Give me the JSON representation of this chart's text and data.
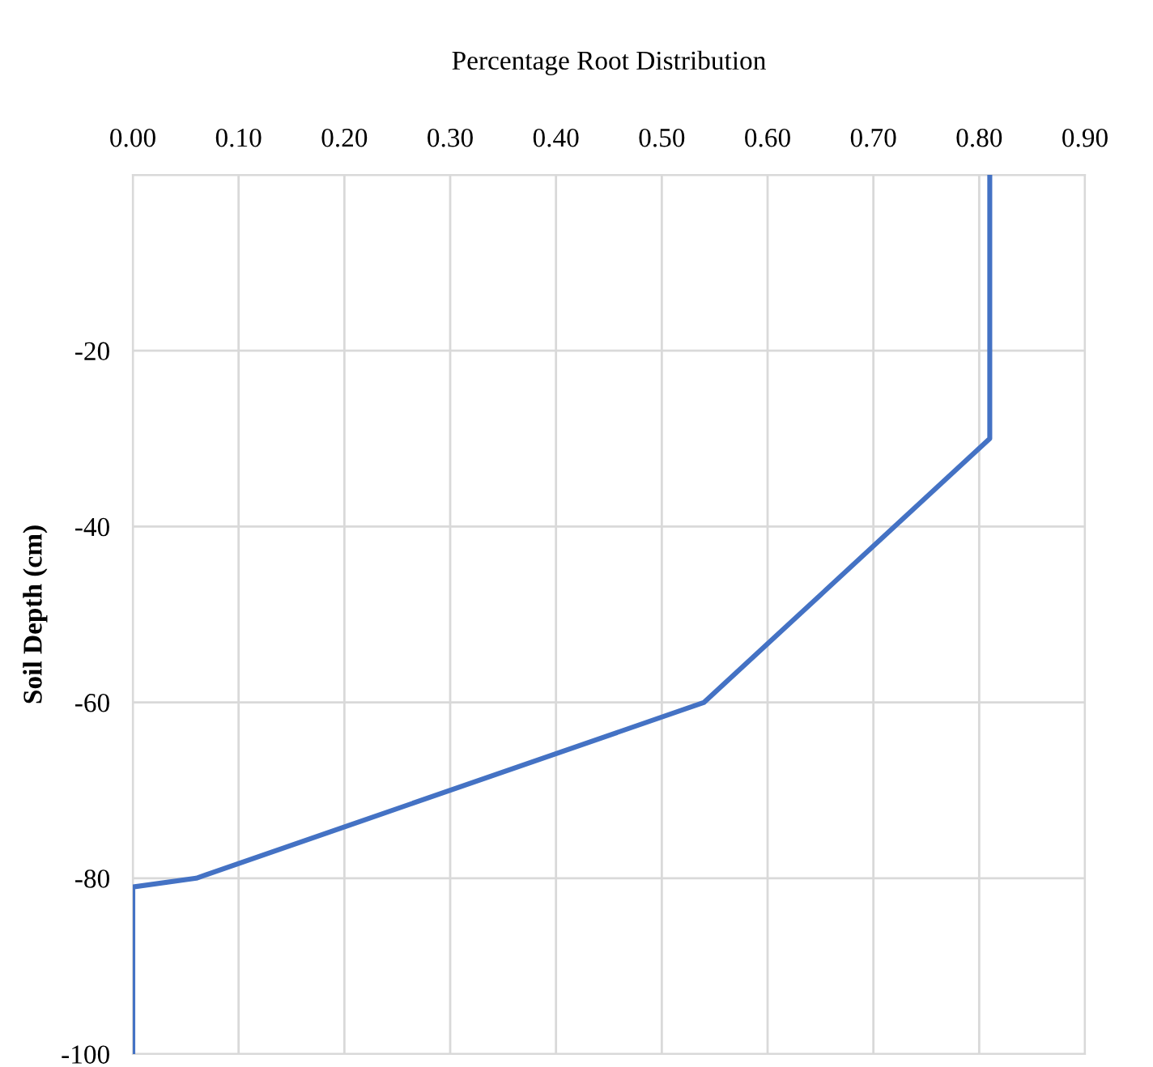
{
  "chart_data": {
    "type": "line",
    "xlabel": "Percentage Root Distribution",
    "ylabel": "Soil Depth (cm)",
    "x": [
      0.81,
      0.81,
      0.54,
      0.06,
      0.0,
      0.0
    ],
    "series": [
      {
        "color": "#4472c4",
        "values": [
          0,
          -30,
          -60,
          -80,
          -81,
          -100
        ]
      }
    ],
    "xlim": [
      0,
      0.9
    ],
    "xticks": [
      {
        "value": 0,
        "label": "0.00"
      },
      {
        "value": 0.1,
        "label": "0.10"
      },
      {
        "value": 0.2,
        "label": "0.20"
      },
      {
        "value": 0.3,
        "label": "0.30"
      },
      {
        "value": 0.4,
        "label": "0.40"
      },
      {
        "value": 0.5,
        "label": "0.50"
      },
      {
        "value": 0.6,
        "label": "0.60"
      },
      {
        "value": 0.7,
        "label": "0.70"
      },
      {
        "value": 0.8,
        "label": "0.80"
      },
      {
        "value": 0.9,
        "label": "0.90"
      }
    ],
    "ylim": [
      -100,
      0
    ],
    "yticks": [
      {
        "value": 0,
        "label": null
      },
      -20,
      -40,
      -60,
      -80,
      -100
    ],
    "grid": true,
    "legend": false,
    "marker": "none",
    "line_style": "solid"
  }
}
